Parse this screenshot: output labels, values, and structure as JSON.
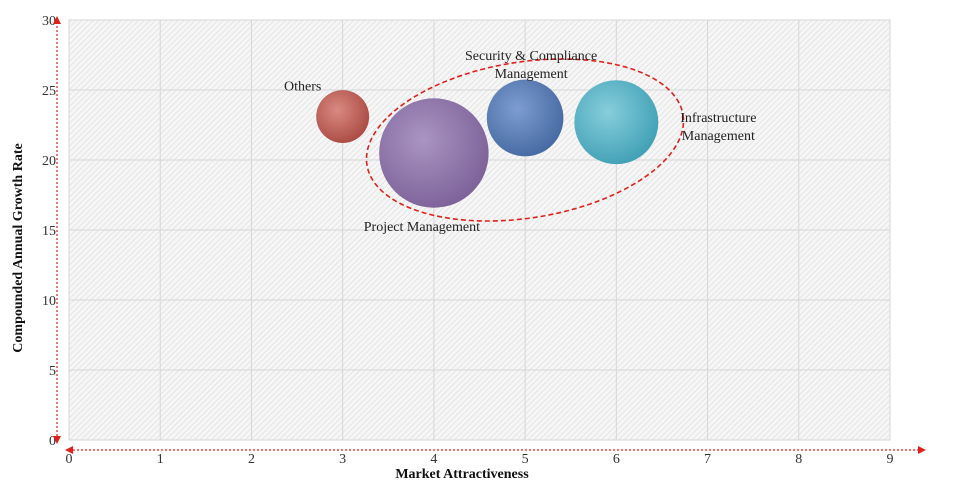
{
  "chart_data": {
    "type": "bubble",
    "title": "",
    "xlabel": "Market Attractiveness",
    "ylabel": "Compounded  Annual  Growth Rate",
    "xlim": [
      0,
      9
    ],
    "ylim": [
      0,
      30
    ],
    "x_ticks": [
      "0",
      "1",
      "2",
      "3",
      "4",
      "5",
      "6",
      "7",
      "8",
      "9"
    ],
    "y_ticks": [
      "0",
      "5",
      "10",
      "15",
      "20",
      "25",
      "30"
    ],
    "grid": true,
    "points": [
      {
        "label_lines": [
          "Others"
        ],
        "x": 3.0,
        "y": 23.1,
        "size": 0.29,
        "color": "#b5554c"
      },
      {
        "label_lines": [
          "Project Management"
        ],
        "x": 4.0,
        "y": 20.5,
        "size": 0.6,
        "color": "#8a6ea6"
      },
      {
        "label_lines": [
          "Security & Compliance",
          "Management"
        ],
        "x": 5.0,
        "y": 23.0,
        "size": 0.42,
        "color": "#4f75b2"
      },
      {
        "label_lines": [
          "Infrastructure",
          "Management"
        ],
        "x": 6.0,
        "y": 22.7,
        "size": 0.46,
        "color": "#4eaec2"
      }
    ],
    "highlight_group": [
      "Project Management",
      "Security & Compliance Management",
      "Infrastructure Management"
    ],
    "highlight_color": "#e0201b",
    "axis_arrow_color": "#e0201b"
  }
}
